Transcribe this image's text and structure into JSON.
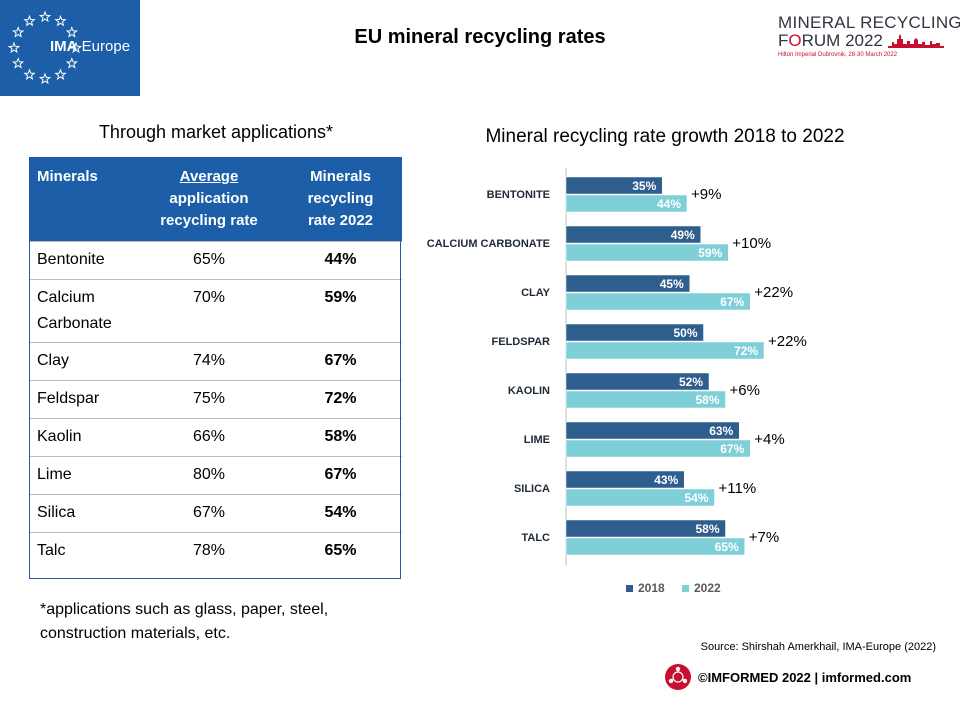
{
  "header": {
    "logo_name": "IMA Europe",
    "logo_bold": "IMA",
    "logo_rest": " Europe",
    "title": "EU mineral recycling rates",
    "forum_line1": "MINERAL RECYCLING",
    "forum_line2_a": "F",
    "forum_line2_o": "O",
    "forum_line2_b": "RUM 2022",
    "forum_line3": "Hilton Imperial Dubrovnik, 28-30 March 2022",
    "brand_color": "#1c5fa8",
    "accent_color": "#c8102e"
  },
  "table": {
    "title": "Through  market  applications*",
    "headers": [
      "Minerals",
      "Average application recycling rate",
      "Minerals recycling rate 2022"
    ],
    "header_lines": {
      "c0": [
        "Minerals"
      ],
      "c1": [
        "Average",
        "application",
        "recycling rate"
      ],
      "c2": [
        "Minerals",
        "recycling",
        "rate 2022"
      ]
    },
    "rows": [
      {
        "mineral": [
          "Bentonite"
        ],
        "average": "65%",
        "rate2022": "44%"
      },
      {
        "mineral": [
          "Calcium",
          "Carbonate"
        ],
        "average": "70%",
        "rate2022": "59%"
      },
      {
        "mineral": [
          "Clay"
        ],
        "average": "74%",
        "rate2022": "67%"
      },
      {
        "mineral": [
          "Feldspar"
        ],
        "average": "75%",
        "rate2022": "72%"
      },
      {
        "mineral": [
          "Kaolin"
        ],
        "average": "66%",
        "rate2022": "58%"
      },
      {
        "mineral": [
          "Lime"
        ],
        "average": "80%",
        "rate2022": "67%"
      },
      {
        "mineral": [
          "Silica"
        ],
        "average": "67%",
        "rate2022": "54%"
      },
      {
        "mineral": [
          "Talc"
        ],
        "average": "78%",
        "rate2022": "65%"
      }
    ]
  },
  "footnote": [
    "*applications such as glass, paper, steel,",
    "construction materials, etc."
  ],
  "chart_data": {
    "type": "bar",
    "orientation": "horizontal",
    "title": "Mineral recycling rate growth 2018 to 2022",
    "categories": [
      "BENTONITE",
      "CALCIUM CARBONATE",
      "CLAY",
      "FELDSPAR",
      "KAOLIN",
      "LIME",
      "SILICA",
      "TALC"
    ],
    "series": [
      {
        "name": "2018",
        "values": [
          35,
          49,
          45,
          50,
          52,
          63,
          43,
          58
        ],
        "labels": [
          "35%",
          "49%",
          "45%",
          "50%",
          "52%",
          "63%",
          "43%",
          "58%"
        ],
        "color": "#2e5e8e"
      },
      {
        "name": "2022",
        "values": [
          44,
          59,
          67,
          72,
          58,
          67,
          54,
          65
        ],
        "labels": [
          "44%",
          "59%",
          "67%",
          "72%",
          "58%",
          "67%",
          "54%",
          "65%"
        ],
        "color": "#7fcfd8"
      }
    ],
    "growth_labels": [
      "+9%",
      "+10%",
      "+22%",
      "+22%",
      "+6%",
      "+4%",
      "+11%",
      "+7%"
    ],
    "xlim": [
      0,
      100
    ],
    "grid": false,
    "legend": "bottom",
    "legend_labels": [
      "2018",
      "2022"
    ]
  },
  "footer": {
    "source": "Source: Shirshah Amerkhail, IMA-Europe (2022)",
    "copyright": "©IMFORMED 2022  | imformed.com",
    "logo_color": "#c8102e"
  }
}
